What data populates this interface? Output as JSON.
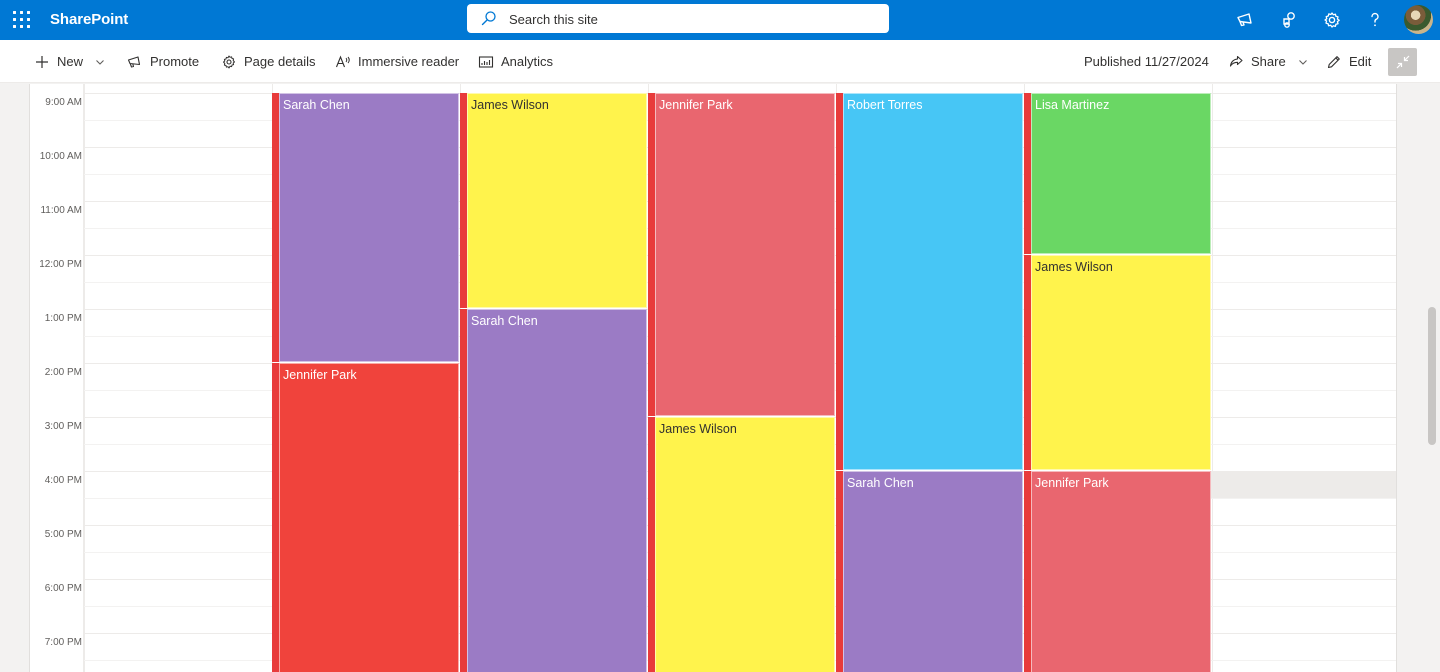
{
  "suitebar": {
    "brand": "SharePoint",
    "search_placeholder": "Search this site",
    "icons": [
      "app-launcher-icon",
      "megaphone-icon",
      "sharepoint-share-icon",
      "settings-gear-icon",
      "help-icon",
      "avatar"
    ]
  },
  "commandbar": {
    "new_label": "New",
    "promote_label": "Promote",
    "page_details_label": "Page details",
    "immersive_reader_label": "Immersive reader",
    "analytics_label": "Analytics",
    "published_label": "Published 11/27/2024",
    "share_label": "Share",
    "edit_label": "Edit"
  },
  "calendar": {
    "times": [
      "9:00 AM",
      "10:00 AM",
      "11:00 AM",
      "12:00 PM",
      "1:00 PM",
      "2:00 PM",
      "3:00 PM",
      "4:00 PM",
      "5:00 PM",
      "6:00 PM",
      "7:00 PM"
    ],
    "colors": {
      "purple": "#9b7bc5",
      "yellow": "#fff34c",
      "pink": "#e9666f",
      "red": "#f0433c",
      "blue": "#47c6f5",
      "green": "#6ad764",
      "accent_bar": "#e83b3b"
    },
    "events": [
      {
        "name": "Sarah Chen",
        "day": 1,
        "start": "9:00 AM",
        "end": "2:00 PM",
        "color": "#9b7bc5",
        "text_color": "#ffffff"
      },
      {
        "name": "Jennifer Park",
        "day": 1,
        "start": "2:00 PM",
        "end": "7:45 PM",
        "color": "#f0433c",
        "text_color": "#ffffff"
      },
      {
        "name": "James Wilson",
        "day": 2,
        "start": "9:00 AM",
        "end": "1:00 PM",
        "color": "#fff34c",
        "text_color": "#323130"
      },
      {
        "name": "Sarah Chen",
        "day": 2,
        "start": "1:00 PM",
        "end": "7:45 PM",
        "color": "#9b7bc5",
        "text_color": "#ffffff"
      },
      {
        "name": "Jennifer Park",
        "day": 3,
        "start": "9:00 AM",
        "end": "3:00 PM",
        "color": "#e9666f",
        "text_color": "#ffffff"
      },
      {
        "name": "James Wilson",
        "day": 3,
        "start": "3:00 PM",
        "end": "7:45 PM",
        "color": "#fff34c",
        "text_color": "#323130"
      },
      {
        "name": "Robert Torres",
        "day": 4,
        "start": "9:00 AM",
        "end": "4:00 PM",
        "color": "#47c6f5",
        "text_color": "#ffffff"
      },
      {
        "name": "Sarah Chen",
        "day": 4,
        "start": "4:00 PM",
        "end": "7:45 PM",
        "color": "#9b7bc5",
        "text_color": "#ffffff"
      },
      {
        "name": "Lisa Martinez",
        "day": 5,
        "start": "9:00 AM",
        "end": "12:00 PM",
        "color": "#6ad764",
        "text_color": "#ffffff"
      },
      {
        "name": "James Wilson",
        "day": 5,
        "start": "12:00 PM",
        "end": "4:00 PM",
        "color": "#fff34c",
        "text_color": "#323130"
      },
      {
        "name": "Jennifer Park",
        "day": 5,
        "start": "4:00 PM",
        "end": "7:45 PM",
        "color": "#e9666f",
        "text_color": "#ffffff"
      }
    ]
  }
}
